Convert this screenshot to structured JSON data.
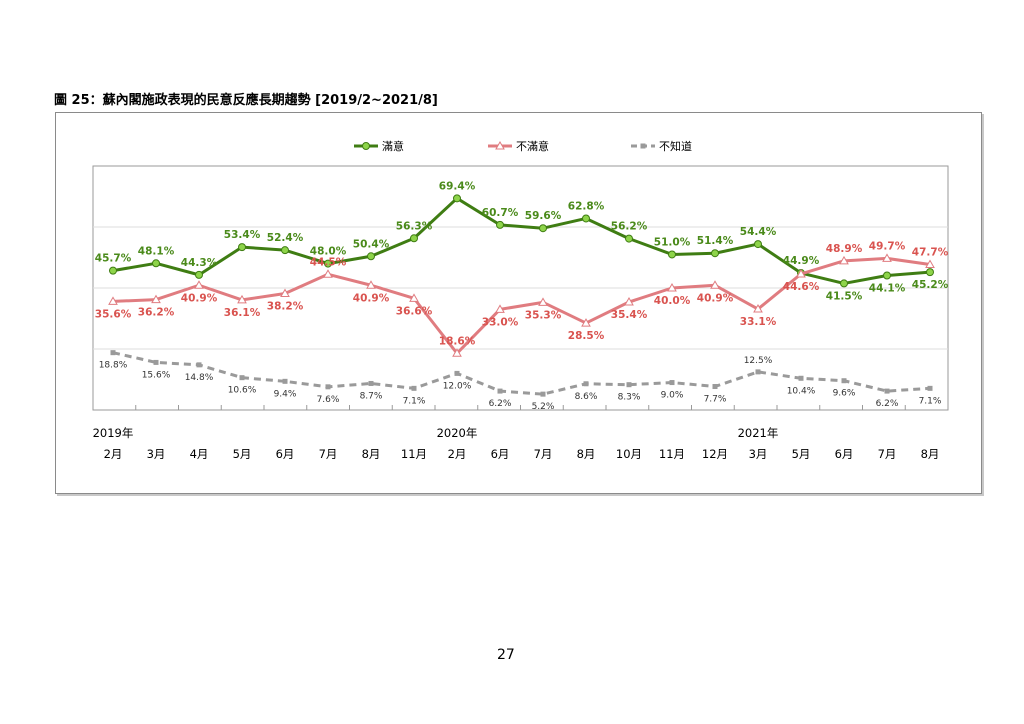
{
  "figure_title": "圖 25：蘇內閣施政表現的民意反應長期趨勢 [2019/2~2021/8]",
  "page_number": "27",
  "colors": {
    "satisfied": "#3f7d13",
    "satisfied_marker": "#8ed44a",
    "dissatisfied": "#e07c80",
    "unknown": "#9a9a9a",
    "label_green": "#4a8a1a",
    "label_red": "#d9534f"
  },
  "chart_data": {
    "type": "line",
    "title": "",
    "xlabel": "",
    "ylabel": "",
    "legend_position": "top",
    "grid": true,
    "categories": [
      "2月",
      "3月",
      "4月",
      "5月",
      "6月",
      "7月",
      "8月",
      "11月",
      "2月",
      "6月",
      "7月",
      "8月",
      "10月",
      "11月",
      "12月",
      "3月",
      "5月",
      "6月",
      "7月",
      "8月"
    ],
    "year_labels": [
      {
        "index": 0,
        "label": "2019年"
      },
      {
        "index": 8,
        "label": "2020年"
      },
      {
        "index": 15,
        "label": "2021年"
      }
    ],
    "ylim": [
      0,
      80
    ],
    "series": [
      {
        "name": "滿意",
        "values": [
          45.7,
          48.1,
          44.3,
          53.4,
          52.4,
          48.0,
          50.4,
          56.3,
          69.4,
          60.7,
          59.6,
          62.8,
          56.2,
          51.0,
          51.4,
          54.4,
          44.9,
          41.5,
          44.1,
          45.2
        ],
        "labels": [
          "45.7%",
          "48.1%",
          "44.3%",
          "53.4%",
          "52.4%",
          "48.0%",
          "50.4%",
          "56.3%",
          "69.4%",
          "60.7%",
          "59.6%",
          "62.8%",
          "56.2%",
          "51.0%",
          "51.4%",
          "54.4%",
          "44.9%",
          "41.5%",
          "44.1%",
          "45.2%"
        ]
      },
      {
        "name": "不滿意",
        "values": [
          35.6,
          36.2,
          40.9,
          36.1,
          38.2,
          44.5,
          40.9,
          36.6,
          18.6,
          33.0,
          35.3,
          28.5,
          35.4,
          40.0,
          40.9,
          33.1,
          44.6,
          48.9,
          49.7,
          47.7
        ],
        "labels": [
          "35.6%",
          "36.2%",
          "40.9%",
          "36.1%",
          "38.2%",
          "44.5%",
          "40.9%",
          "36.6%",
          "18.6%",
          "33.0%",
          "35.3%",
          "28.5%",
          "35.4%",
          "40.0%",
          "40.9%",
          "33.1%",
          "44.6%",
          "48.9%",
          "49.7%",
          "47.7%"
        ]
      },
      {
        "name": "不知道",
        "values": [
          18.8,
          15.6,
          14.8,
          10.6,
          9.4,
          7.6,
          8.7,
          7.1,
          12.0,
          6.2,
          5.2,
          8.6,
          8.3,
          9.0,
          7.7,
          12.5,
          10.4,
          9.6,
          6.2,
          7.1
        ],
        "labels": [
          "18.8%",
          "15.6%",
          "14.8%",
          "10.6%",
          "9.4%",
          "7.6%",
          "8.7%",
          "7.1%",
          "12.0%",
          "6.2%",
          "5.2%",
          "8.6%",
          "8.3%",
          "9.0%",
          "7.7%",
          "12.5%",
          "10.4%",
          "9.6%",
          "6.2%",
          "7.1%"
        ]
      }
    ]
  }
}
